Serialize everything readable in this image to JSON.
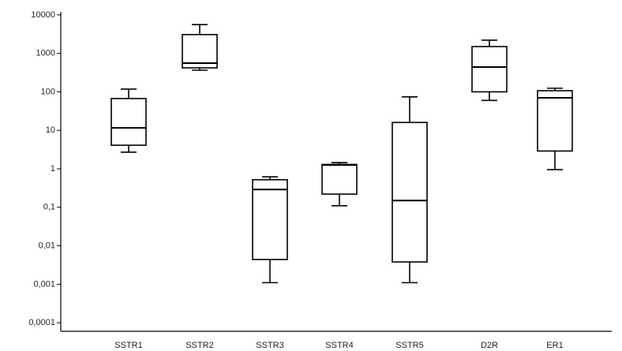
{
  "chart_data": {
    "type": "box",
    "categories": [
      "SSTR1",
      "SSTR2",
      "SSTR3",
      "SSTR4",
      "SSTR5",
      "D2R",
      "ER1"
    ],
    "min": [
      2.7,
      365,
      0.0011,
      0.11,
      0.0011,
      60,
      0.95
    ],
    "q1": [
      4.1,
      420,
      0.0044,
      0.22,
      0.0038,
      100,
      2.9
    ],
    "median": [
      11.6,
      560,
      0.29,
      1.25,
      0.15,
      440,
      70
    ],
    "q3": [
      67,
      3080,
      0.52,
      1.3,
      16,
      1500,
      107
    ],
    "max": [
      118,
      5600,
      0.62,
      1.45,
      74,
      2200,
      124
    ],
    "color": "#000000",
    "log_scale": true,
    "ylim": [
      6e-05,
      12000
    ],
    "yticks": [
      10000,
      1000,
      100,
      10,
      1,
      {
        "value": 0.1,
        "label": "0,1"
      },
      {
        "value": 0.01,
        "label": "0,01"
      },
      {
        "value": 0.001,
        "label": "0,001"
      },
      {
        "value": 0.0001,
        "label": "0,0001"
      }
    ]
  }
}
